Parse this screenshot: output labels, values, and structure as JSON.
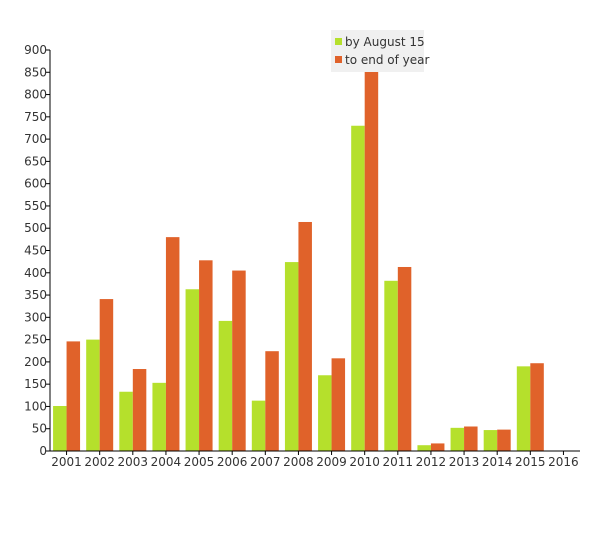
{
  "chart_data": {
    "type": "bar",
    "categories": [
      "2001",
      "2002",
      "2003",
      "2004",
      "2005",
      "2006",
      "2007",
      "2008",
      "2009",
      "2010",
      "2011",
      "2012",
      "2013",
      "2014",
      "2015",
      "2016"
    ],
    "series": [
      {
        "name": "by August 15",
        "color": "#b5e02c",
        "values": [
          101,
          250,
          133,
          153,
          363,
          292,
          113,
          424,
          170,
          730,
          382,
          13,
          52,
          47,
          190,
          0
        ]
      },
      {
        "name": "to end of year",
        "color": "#e0622a",
        "values": [
          246,
          341,
          184,
          480,
          428,
          405,
          224,
          514,
          208,
          853,
          413,
          17,
          55,
          48,
          197,
          0
        ]
      }
    ],
    "ylim": [
      0,
      900
    ],
    "yticks": [
      0,
      50,
      100,
      150,
      200,
      250,
      300,
      350,
      400,
      450,
      500,
      550,
      600,
      650,
      700,
      750,
      800,
      850,
      900
    ],
    "grid": false,
    "legend_position": "top-right",
    "title": "",
    "xlabel": "",
    "ylabel": ""
  }
}
